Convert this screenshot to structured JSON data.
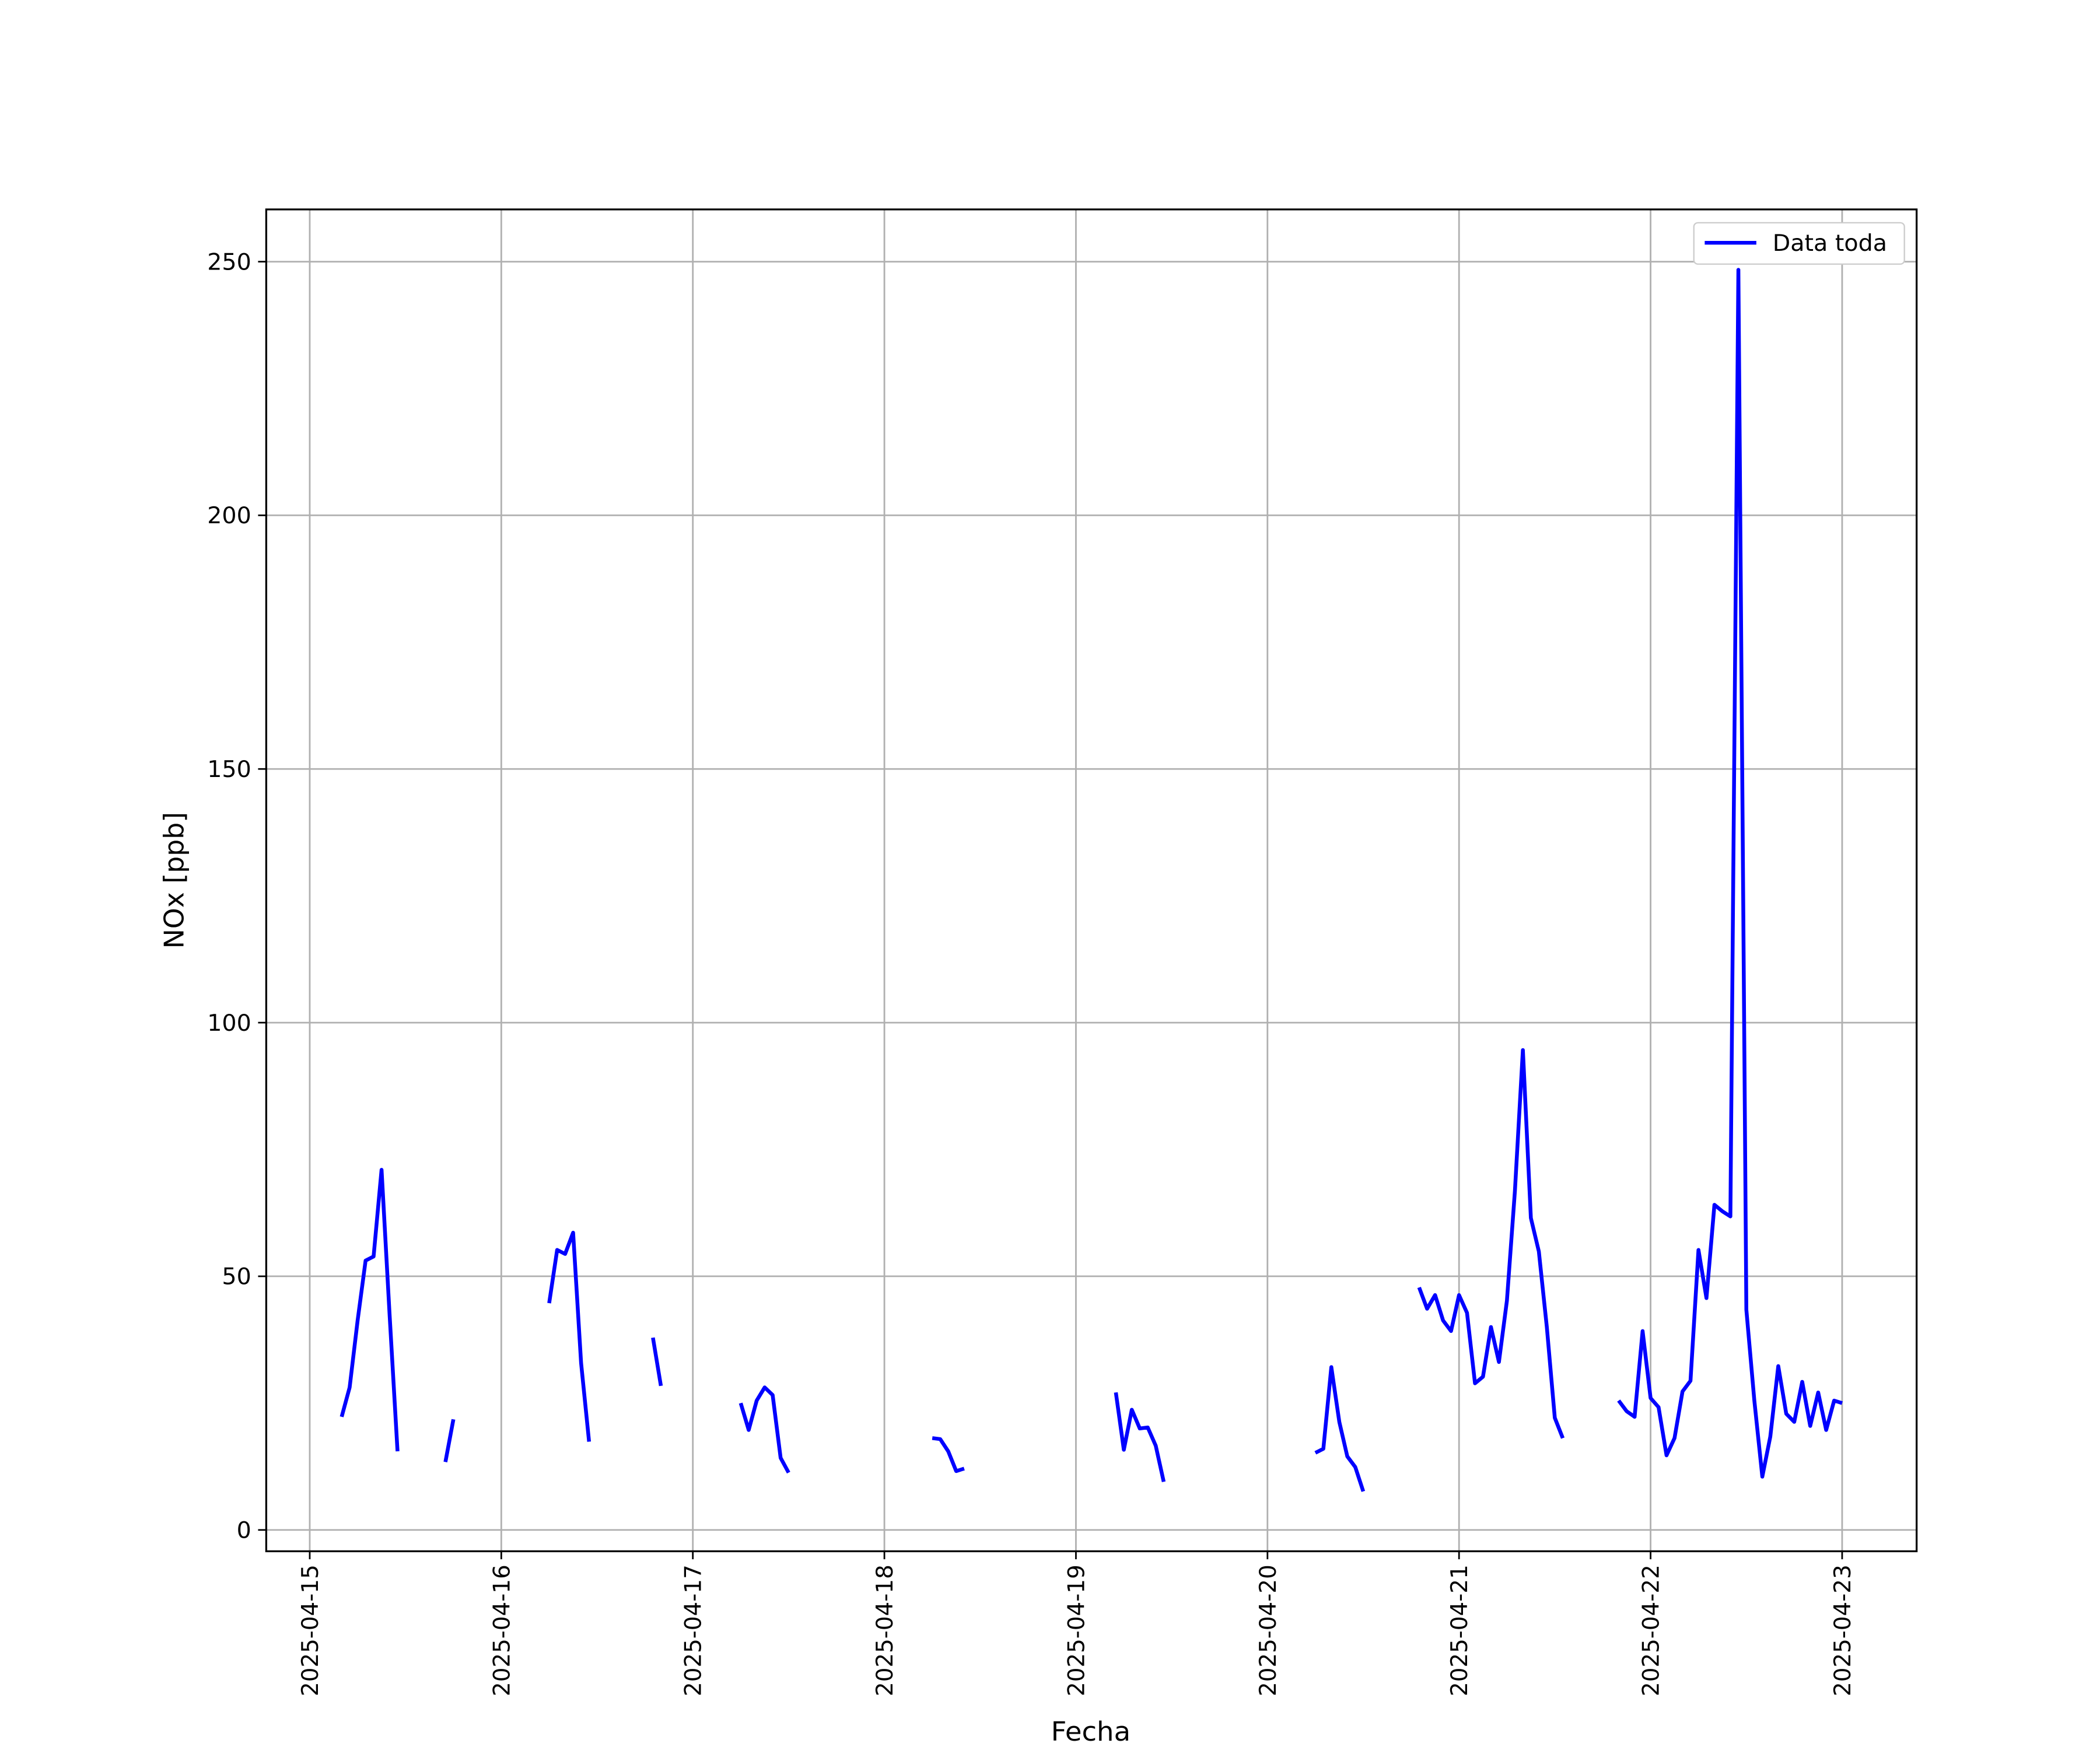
{
  "chart_data": {
    "type": "line",
    "xlabel": "Fecha",
    "ylabel": "NOx [ppb]",
    "x": [
      "2025-04-15 04:00",
      "2025-04-15 05:00",
      "2025-04-15 06:00",
      "2025-04-15 07:00",
      "2025-04-15 08:00",
      "2025-04-15 09:00",
      "2025-04-15 10:00",
      "2025-04-15 11:00",
      "2025-04-15 12:00",
      "2025-04-15 17:00",
      "2025-04-15 18:00",
      "2025-04-15 19:00",
      "2025-04-16 06:00",
      "2025-04-16 07:00",
      "2025-04-16 08:00",
      "2025-04-16 09:00",
      "2025-04-16 10:00",
      "2025-04-16 11:00",
      "2025-04-16 12:00",
      "2025-04-16 19:00",
      "2025-04-16 20:00",
      "2025-04-16 21:00",
      "2025-04-17 06:00",
      "2025-04-17 07:00",
      "2025-04-17 08:00",
      "2025-04-17 09:00",
      "2025-04-17 10:00",
      "2025-04-17 11:00",
      "2025-04-17 12:00",
      "2025-04-17 13:00",
      "2025-04-18 06:00",
      "2025-04-18 07:00",
      "2025-04-18 08:00",
      "2025-04-18 09:00",
      "2025-04-18 10:00",
      "2025-04-18 11:00",
      "2025-04-19 05:00",
      "2025-04-19 06:00",
      "2025-04-19 07:00",
      "2025-04-19 08:00",
      "2025-04-19 09:00",
      "2025-04-19 10:00",
      "2025-04-19 11:00",
      "2025-04-19 12:00",
      "2025-04-20 06:00",
      "2025-04-20 07:00",
      "2025-04-20 08:00",
      "2025-04-20 09:00",
      "2025-04-20 10:00",
      "2025-04-20 11:00",
      "2025-04-20 12:00",
      "2025-04-20 13:00",
      "2025-04-20 19:00",
      "2025-04-20 20:00",
      "2025-04-20 21:00",
      "2025-04-20 22:00",
      "2025-04-20 23:00",
      "2025-04-21 00:00",
      "2025-04-21 01:00",
      "2025-04-21 02:00",
      "2025-04-21 03:00",
      "2025-04-21 04:00",
      "2025-04-21 05:00",
      "2025-04-21 06:00",
      "2025-04-21 07:00",
      "2025-04-21 08:00",
      "2025-04-21 09:00",
      "2025-04-21 10:00",
      "2025-04-21 11:00",
      "2025-04-21 12:00",
      "2025-04-21 13:00",
      "2025-04-21 14:00",
      "2025-04-21 20:00",
      "2025-04-21 21:00",
      "2025-04-21 22:00",
      "2025-04-21 23:00",
      "2025-04-22 00:00",
      "2025-04-22 01:00",
      "2025-04-22 02:00",
      "2025-04-22 03:00",
      "2025-04-22 04:00",
      "2025-04-22 05:00",
      "2025-04-22 06:00",
      "2025-04-22 07:00",
      "2025-04-22 08:00",
      "2025-04-22 09:00",
      "2025-04-22 10:00",
      "2025-04-22 11:00",
      "2025-04-22 12:00",
      "2025-04-22 13:00",
      "2025-04-22 14:00",
      "2025-04-22 15:00",
      "2025-04-22 16:00",
      "2025-04-22 17:00",
      "2025-04-22 18:00",
      "2025-04-22 19:00",
      "2025-04-22 20:00",
      "2025-04-22 21:00",
      "2025-04-22 22:00",
      "2025-04-22 23:00",
      "2025-04-23 00:00"
    ],
    "series": [
      {
        "name": "Data toda",
        "color": "#0000ff",
        "values": [
          22.3,
          28.1,
          41.3,
          53.1,
          53.9,
          71.0,
          42.6,
          15.5,
          null,
          13.4,
          21.8,
          null,
          44.7,
          55.2,
          54.4,
          58.6,
          32.9,
          17.4,
          null,
          37.9,
          28.4,
          null,
          25.0,
          19.7,
          25.5,
          28.1,
          26.6,
          14.2,
          11.3,
          null,
          18.1,
          17.9,
          15.5,
          11.6,
          12.1,
          null,
          27.1,
          15.8,
          23.7,
          20.0,
          20.2,
          16.6,
          9.5,
          null,
          15.2,
          16.0,
          32.1,
          21.3,
          14.5,
          12.4,
          7.6,
          null,
          47.8,
          43.6,
          46.3,
          41.3,
          39.2,
          46.3,
          42.8,
          28.9,
          30.2,
          40.0,
          33.1,
          45.2,
          66.8,
          94.6,
          61.5,
          54.9,
          40.0,
          22.1,
          18.1,
          null,
          25.5,
          23.4,
          22.3,
          39.2,
          26.0,
          24.2,
          14.7,
          18.1,
          27.3,
          29.4,
          55.2,
          45.7,
          64.1,
          62.8,
          61.8,
          248.4,
          43.4,
          25.5,
          10.5,
          18.4,
          32.3,
          22.9,
          21.3,
          29.2,
          20.5,
          27.1,
          19.7,
          25.5,
          25.0
        ]
      }
    ],
    "xlim": [
      "2025-04-14 18:33",
      "2025-04-23 09:20"
    ],
    "xticks": [
      "2025-04-15",
      "2025-04-16",
      "2025-04-17",
      "2025-04-18",
      "2025-04-19",
      "2025-04-20",
      "2025-04-21",
      "2025-04-22",
      "2025-04-23"
    ],
    "ylim": [
      -4.2,
      260.3
    ],
    "yticks": [
      0,
      50,
      100,
      150,
      200,
      250
    ],
    "grid": true,
    "legend": "upper right"
  }
}
